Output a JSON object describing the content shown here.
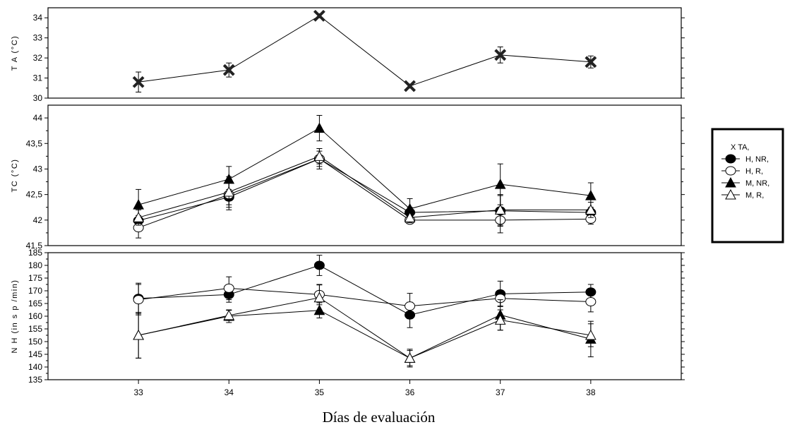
{
  "chart_data": [
    {
      "type": "line",
      "ylabel": "T A (°C)",
      "xlim": [
        32,
        39
      ],
      "ylim": [
        30,
        34.5
      ],
      "yticks": [
        "30",
        "31",
        "32",
        "33",
        "34"
      ],
      "series": [
        {
          "name": "TA,",
          "marker": "x",
          "x": [
            33,
            34,
            35,
            36,
            37,
            38
          ],
          "values": [
            30.8,
            31.4,
            34.1,
            30.6,
            32.15,
            31.8
          ],
          "err": [
            0.5,
            0.35,
            0.1,
            0.1,
            0.4,
            0.3
          ]
        }
      ]
    },
    {
      "type": "line",
      "ylabel": "TC (°C)",
      "xlim": [
        32,
        39
      ],
      "ylim": [
        41.5,
        44.25
      ],
      "yticks": [
        "41,5",
        "42",
        "42,5",
        "43",
        "43,5",
        "44"
      ],
      "series": [
        {
          "name": "H, NR,",
          "marker": "filled-circle",
          "x": [
            33,
            34,
            35,
            36,
            37,
            38
          ],
          "values": [
            41.99,
            42.45,
            43.2,
            42.15,
            42.18,
            42.15
          ],
          "err": [
            0.1,
            0.15,
            0.15,
            0.1,
            0.3,
            0.1
          ]
        },
        {
          "name": "H, R,",
          "marker": "open-circle",
          "x": [
            33,
            34,
            35,
            36,
            37,
            38
          ],
          "values": [
            41.85,
            42.5,
            43.2,
            42.0,
            42.0,
            42.02
          ],
          "err": [
            0.2,
            0.3,
            0.2,
            0.05,
            0.25,
            0.1
          ]
        },
        {
          "name": "M, NR,",
          "marker": "filled-triangle",
          "x": [
            33,
            34,
            35,
            36,
            37,
            38
          ],
          "values": [
            42.3,
            42.8,
            43.8,
            42.22,
            42.7,
            42.48
          ],
          "err": [
            0.3,
            0.25,
            0.25,
            0.2,
            0.4,
            0.25
          ]
        },
        {
          "name": "M, R,",
          "marker": "open-triangle",
          "x": [
            33,
            34,
            35,
            36,
            37,
            38
          ],
          "values": [
            42.05,
            42.55,
            43.25,
            42.05,
            42.2,
            42.2
          ],
          "err": [
            0.15,
            0.3,
            0.15,
            0.1,
            0.3,
            0.15
          ]
        }
      ]
    },
    {
      "type": "line",
      "ylabel": "N H  (in s p /min)",
      "xlabel": "Días  de evaluación",
      "xlim": [
        32,
        39
      ],
      "ylim": [
        135,
        185
      ],
      "categories": [
        "33",
        "34",
        "35",
        "36",
        "37",
        "38"
      ],
      "yticks": [
        "135",
        "140",
        "145",
        "150",
        "155",
        "160",
        "165",
        "170",
        "175",
        "180",
        "185"
      ],
      "series": [
        {
          "name": "H, NR,",
          "marker": "filled-circle",
          "x": [
            33,
            34,
            35,
            36,
            37,
            38
          ],
          "values": [
            167,
            168.5,
            180,
            160.5,
            168.8,
            169.5
          ],
          "err": [
            6,
            3,
            4,
            5,
            5,
            3
          ]
        },
        {
          "name": "H, R,",
          "marker": "open-circle",
          "x": [
            33,
            34,
            35,
            36,
            37,
            38
          ],
          "values": [
            166.5,
            171,
            168.5,
            164,
            167,
            165.7
          ],
          "err": [
            6,
            4.5,
            4,
            5,
            3,
            4
          ]
        },
        {
          "name": "M, NR,",
          "marker": "filled-triangle",
          "x": [
            33,
            34,
            35,
            36,
            37,
            38
          ],
          "values": [
            152.5,
            160,
            162.3,
            143.5,
            160.5,
            151
          ],
          "err": [
            9,
            2.5,
            3,
            3,
            6,
            7
          ]
        },
        {
          "name": "M, R,",
          "marker": "open-triangle",
          "x": [
            33,
            34,
            35,
            36,
            37,
            38
          ],
          "values": [
            152.5,
            160.3,
            167.3,
            143.5,
            158.5,
            152.5
          ],
          "err": [
            9,
            2,
            5,
            3.5,
            4,
            4.5
          ]
        }
      ]
    }
  ],
  "legend": {
    "placement": "right",
    "items": [
      {
        "label": "X  TA,",
        "marker": "none"
      },
      {
        "label": "H, NR,",
        "marker": "filled-circle"
      },
      {
        "label": "H, R,",
        "marker": "open-circle"
      },
      {
        "label": "M, NR,",
        "marker": "filled-triangle"
      },
      {
        "label": "M, R,",
        "marker": "open-triangle"
      }
    ]
  }
}
